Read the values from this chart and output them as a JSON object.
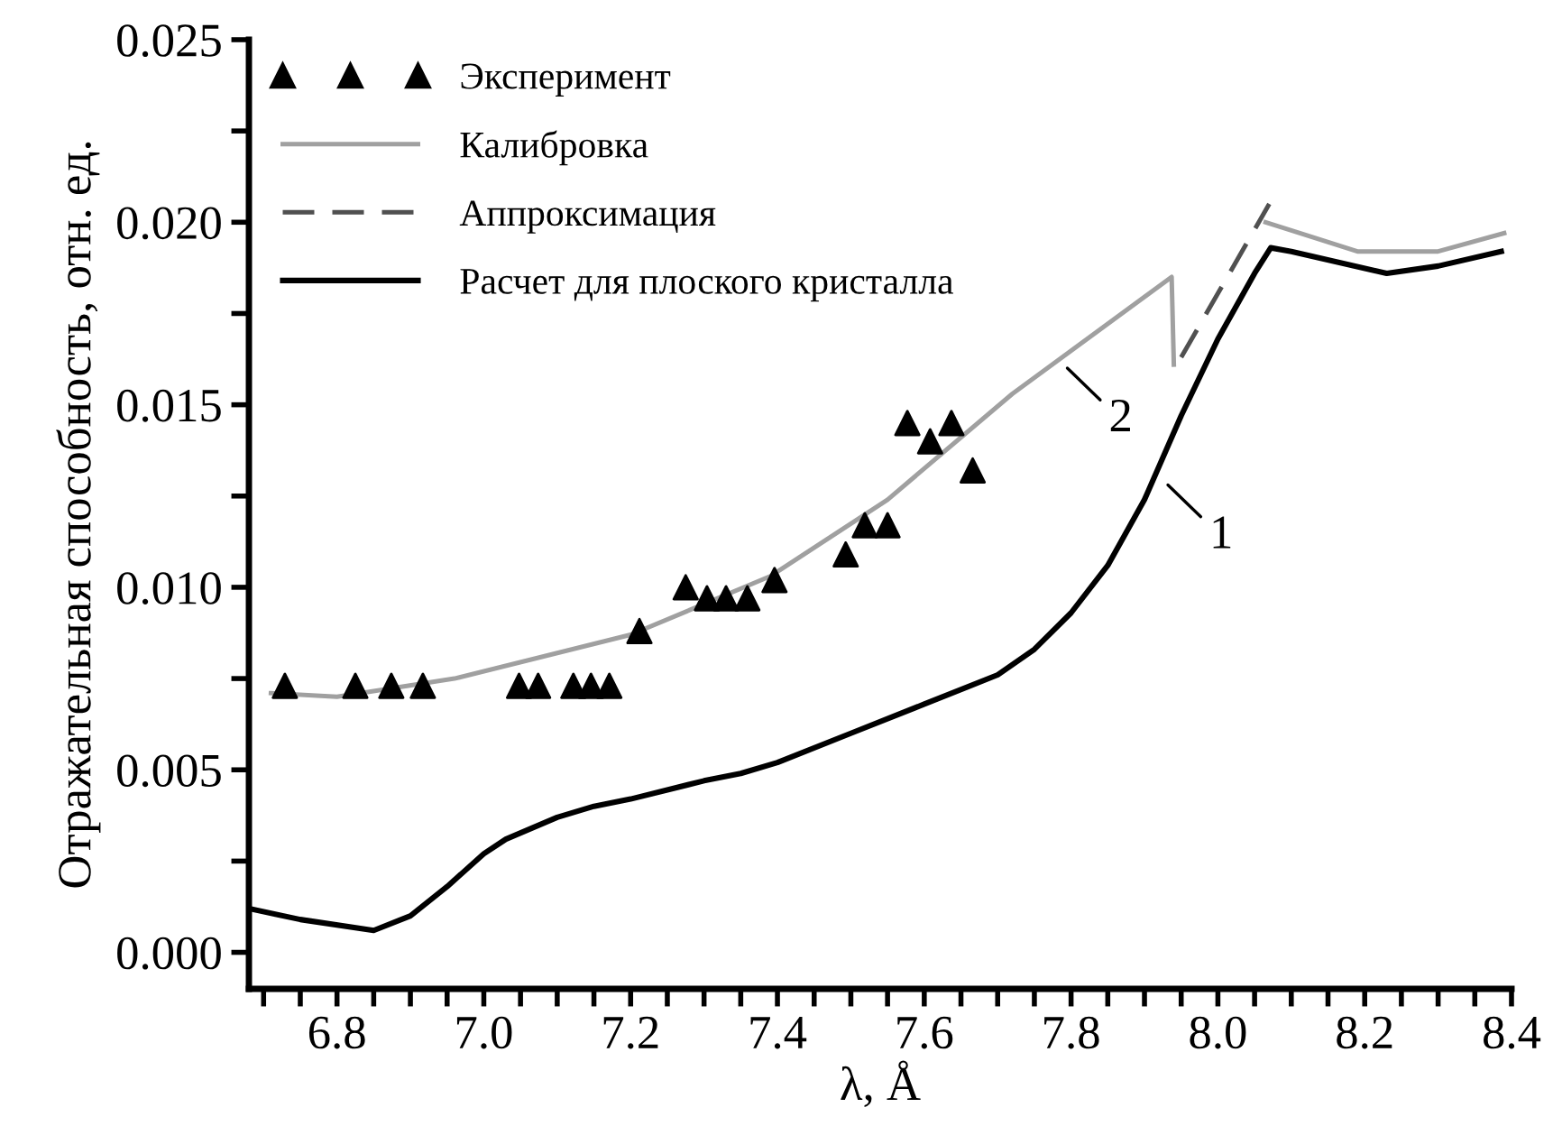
{
  "chart_data": {
    "type": "line",
    "xlabel": "λ, Å",
    "ylabel": "Отражательная способность, отн. ед.",
    "xlim": [
      6.68,
      8.4
    ],
    "ylim": [
      -0.001,
      0.025
    ],
    "xticks": [
      {
        "value": 6.7,
        "label": null
      },
      {
        "value": 6.75,
        "label": null
      },
      {
        "value": 6.8,
        "label": "6.8"
      },
      {
        "value": 6.85,
        "label": null
      },
      {
        "value": 6.9,
        "label": null
      },
      {
        "value": 6.95,
        "label": null
      },
      {
        "value": 7.0,
        "label": "7.0"
      },
      {
        "value": 7.05,
        "label": null
      },
      {
        "value": 7.1,
        "label": null
      },
      {
        "value": 7.15,
        "label": null
      },
      {
        "value": 7.2,
        "label": "7.2"
      },
      {
        "value": 7.25,
        "label": null
      },
      {
        "value": 7.3,
        "label": null
      },
      {
        "value": 7.35,
        "label": null
      },
      {
        "value": 7.4,
        "label": "7.4"
      },
      {
        "value": 7.45,
        "label": null
      },
      {
        "value": 7.5,
        "label": null
      },
      {
        "value": 7.55,
        "label": null
      },
      {
        "value": 7.6,
        "label": "7.6"
      },
      {
        "value": 7.65,
        "label": null
      },
      {
        "value": 7.7,
        "label": null
      },
      {
        "value": 7.75,
        "label": null
      },
      {
        "value": 7.8,
        "label": "7.8"
      },
      {
        "value": 7.85,
        "label": null
      },
      {
        "value": 7.9,
        "label": null
      },
      {
        "value": 7.95,
        "label": null
      },
      {
        "value": 8.0,
        "label": "8.0"
      },
      {
        "value": 8.05,
        "label": null
      },
      {
        "value": 8.1,
        "label": null
      },
      {
        "value": 8.15,
        "label": null
      },
      {
        "value": 8.2,
        "label": "8.2"
      },
      {
        "value": 8.25,
        "label": null
      },
      {
        "value": 8.3,
        "label": null
      },
      {
        "value": 8.35,
        "label": null
      },
      {
        "value": 8.4,
        "label": "8.4"
      }
    ],
    "yticks": [
      {
        "value": 0,
        "label": "0.000"
      },
      {
        "value": 0.0025,
        "label": null
      },
      {
        "value": 0.005,
        "label": "0.005"
      },
      {
        "value": 0.0075,
        "label": null
      },
      {
        "value": 0.01,
        "label": "0.010"
      },
      {
        "value": 0.0125,
        "label": null
      },
      {
        "value": 0.015,
        "label": "0.015"
      },
      {
        "value": 0.0175,
        "label": null
      },
      {
        "value": 0.02,
        "label": "0.020"
      },
      {
        "value": 0.0225,
        "label": null
      },
      {
        "value": 0.025,
        "label": "0.025"
      }
    ],
    "grid": false,
    "legend": "top left",
    "series": [
      {
        "name": "Эксперимент",
        "type": "scatter",
        "marker": "triangle",
        "color": "#000000",
        "x": [
          6.729,
          6.825,
          6.874,
          6.917,
          7.048,
          7.074,
          7.122,
          7.146,
          7.171,
          7.212,
          7.275,
          7.304,
          7.33,
          7.359,
          7.396,
          7.493,
          7.519,
          7.55,
          7.577,
          7.608,
          7.637,
          7.666
        ],
        "values": [
          0.0073,
          0.0073,
          0.0073,
          0.0073,
          0.0073,
          0.0073,
          0.0073,
          0.0073,
          0.0073,
          0.0088,
          0.01,
          0.0097,
          0.0097,
          0.0097,
          0.0102,
          0.0109,
          0.0117,
          0.0117,
          0.0145,
          0.014,
          0.0145,
          0.0132
        ]
      },
      {
        "name": "Калибровка",
        "color": "#a0a0a0",
        "line_style": "solid",
        "x": [
          6.71,
          6.8,
          6.96,
          7.2,
          7.39,
          7.55,
          7.72,
          7.937,
          7.94,
          8.0,
          8.065,
          8.19,
          8.3,
          8.39
        ],
        "values": [
          0.0071,
          0.007,
          0.0075,
          0.0087,
          0.0103,
          0.0124,
          0.0153,
          0.0185,
          0.0161,
          null,
          0.02,
          0.0192,
          0.0192,
          0.0197
        ]
      },
      {
        "name": "Аппроксимация",
        "color": "#505050",
        "line_style": "dashed",
        "x": [
          7.95,
          8.07
        ],
        "values": [
          0.0163,
          0.0205
        ]
      },
      {
        "name": "Расчет для плоского кристалла",
        "color": "#000000",
        "line_style": "solid",
        "x": [
          6.68,
          6.75,
          6.85,
          6.9,
          6.95,
          7.0,
          7.03,
          7.1,
          7.15,
          7.2,
          7.3,
          7.35,
          7.4,
          7.5,
          7.6,
          7.7,
          7.75,
          7.8,
          7.85,
          7.9,
          7.95,
          8.0,
          8.05,
          8.072,
          8.1,
          8.23,
          8.3,
          8.386
        ],
        "values": [
          0.0012,
          0.0009,
          0.0006,
          0.001,
          0.0018,
          0.0027,
          0.0031,
          0.0037,
          0.004,
          0.0042,
          0.0047,
          0.0049,
          0.0052,
          0.006,
          0.0068,
          0.0076,
          0.0083,
          0.0093,
          0.0106,
          0.0124,
          0.0147,
          0.0168,
          0.0186,
          0.0193,
          0.0192,
          0.0186,
          0.0188,
          0.0192
        ]
      }
    ],
    "annotations": [
      {
        "text": "2",
        "x": 7.79,
        "y": 0.0161
      },
      {
        "text": "1",
        "x": 7.927,
        "y": 0.0129
      }
    ]
  }
}
